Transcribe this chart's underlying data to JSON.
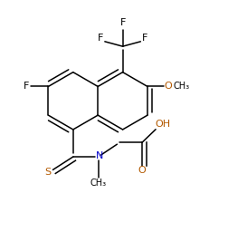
{
  "bg_color": "#ffffff",
  "atom_colors": {
    "F": "#000000",
    "O": "#b35900",
    "N": "#0000cc",
    "S": "#b35900",
    "C": "#000000"
  },
  "figsize": [
    2.52,
    2.77
  ],
  "dpi": 100,
  "bond_lw": 1.1,
  "xlim": [
    0.0,
    2.52
  ],
  "ylim": [
    0.0,
    2.77
  ]
}
